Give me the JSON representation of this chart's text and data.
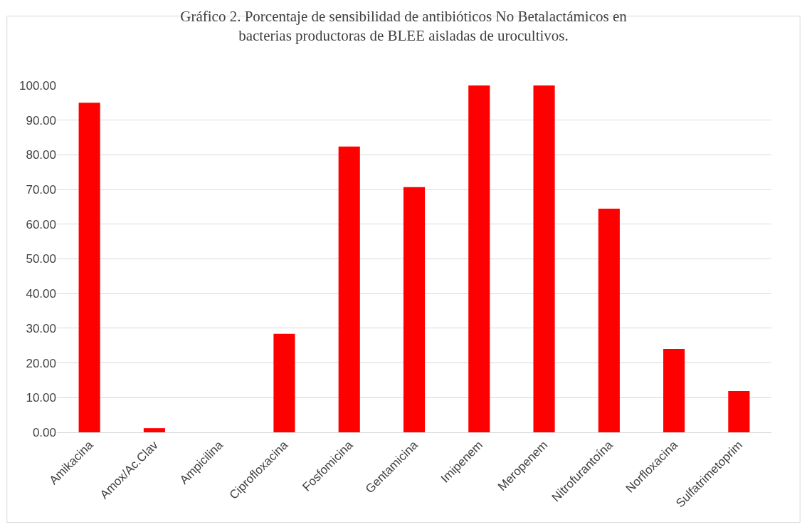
{
  "chart_data": {
    "type": "bar",
    "title": "Gráfico 2. Porcentaje de sensibilidad de antibióticos No Betalactámicos en bacterias productoras de BLEE aisladas de urocultivos.",
    "categories": [
      "Amikacina",
      "Amox/Ac.Clav",
      "Ampicilina",
      "Ciprofloxacina",
      "Fosfomicina",
      "Gentamicina",
      "Imipenem",
      "Meropenem",
      "Nitrofurantoína",
      "Norfloxacina",
      "Sulfatrimetoprim"
    ],
    "values": [
      95,
      1.2,
      0,
      28.4,
      82.4,
      70.7,
      100,
      100,
      64.5,
      24.0,
      11.9
    ],
    "color": "#ff0000",
    "ylim": [
      0,
      100
    ],
    "yticks": [
      {
        "value": 0,
        "label": "0.00"
      },
      {
        "value": 10,
        "label": "10.00"
      },
      {
        "value": 20,
        "label": "20.00"
      },
      {
        "value": 30,
        "label": "30.00"
      },
      {
        "value": 40,
        "label": "40.00"
      },
      {
        "value": 50,
        "label": "50.00"
      },
      {
        "value": 60,
        "label": "60.00"
      },
      {
        "value": 70,
        "label": "70.00"
      },
      {
        "value": 80,
        "label": "80.00"
      },
      {
        "value": 90,
        "label": "90.00"
      },
      {
        "value": 100,
        "label": "100.00"
      }
    ],
    "grid": "y"
  }
}
